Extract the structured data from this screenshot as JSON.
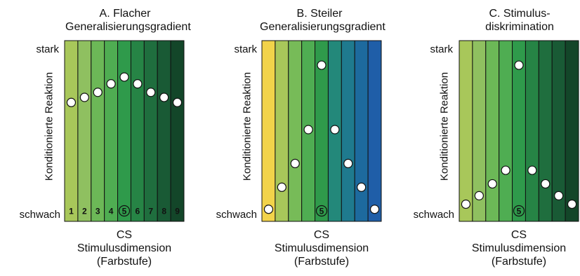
{
  "panels": [
    {
      "title_line1": "A. Flacher",
      "title_line2": "Generalisierungsgradient",
      "y_top": "stark",
      "y_bottom": "schwach",
      "y_axis": "Konditionierte Reaktion",
      "x_line1": "CS",
      "x_line2": "Stimulusdimension",
      "x_line3": "(Farbstufe)",
      "stripe_colors": [
        "#a8c75a",
        "#8fc060",
        "#6cb857",
        "#4fad52",
        "#2f9a4b",
        "#268445",
        "#1f6e3e",
        "#195a35",
        "#134629"
      ],
      "numbers": [
        "1",
        "2",
        "3",
        "4",
        "5",
        "6",
        "7",
        "8",
        "9"
      ],
      "cs_index": 4,
      "responses": [
        0.66,
        0.69,
        0.72,
        0.77,
        0.81,
        0.77,
        0.72,
        0.69,
        0.66
      ]
    },
    {
      "title_line1": "B. Steiler",
      "title_line2": "Generalisierungsgradient",
      "y_top": "stark",
      "y_bottom": "schwach",
      "y_axis": "Konditionierte Reaktion",
      "x_line1": "CS",
      "x_line2": "Stimulusdimension",
      "x_line3": "(Farbstufe)",
      "stripe_colors": [
        "#f2d34a",
        "#a8c75a",
        "#77bb58",
        "#4fad52",
        "#2f9a4b",
        "#23887a",
        "#1f7a8e",
        "#1d6a9e",
        "#1f5ea8"
      ],
      "numbers": [
        "",
        "",
        "",
        "",
        "5",
        "",
        "",
        "",
        ""
      ],
      "cs_index": 4,
      "responses": [
        0.03,
        0.16,
        0.3,
        0.5,
        0.88,
        0.5,
        0.3,
        0.16,
        0.03
      ]
    },
    {
      "title_line1": "C. Stimulus-",
      "title_line2": "diskrimination",
      "y_top": "stark",
      "y_bottom": "schwach",
      "y_axis": "Konditionierte Reaktion",
      "x_line1": "CS",
      "x_line2": "Stimulusdimension",
      "x_line3": "(Farbstufe)",
      "stripe_colors": [
        "#a8c75a",
        "#8fc060",
        "#6cb857",
        "#4fad52",
        "#2f9a4b",
        "#268445",
        "#1f6e3e",
        "#195a35",
        "#134629"
      ],
      "numbers": [
        "",
        "",
        "",
        "",
        "5",
        "",
        "",
        "",
        ""
      ],
      "cs_index": 4,
      "responses": [
        0.06,
        0.11,
        0.18,
        0.26,
        0.88,
        0.26,
        0.18,
        0.11,
        0.06
      ]
    }
  ]
}
